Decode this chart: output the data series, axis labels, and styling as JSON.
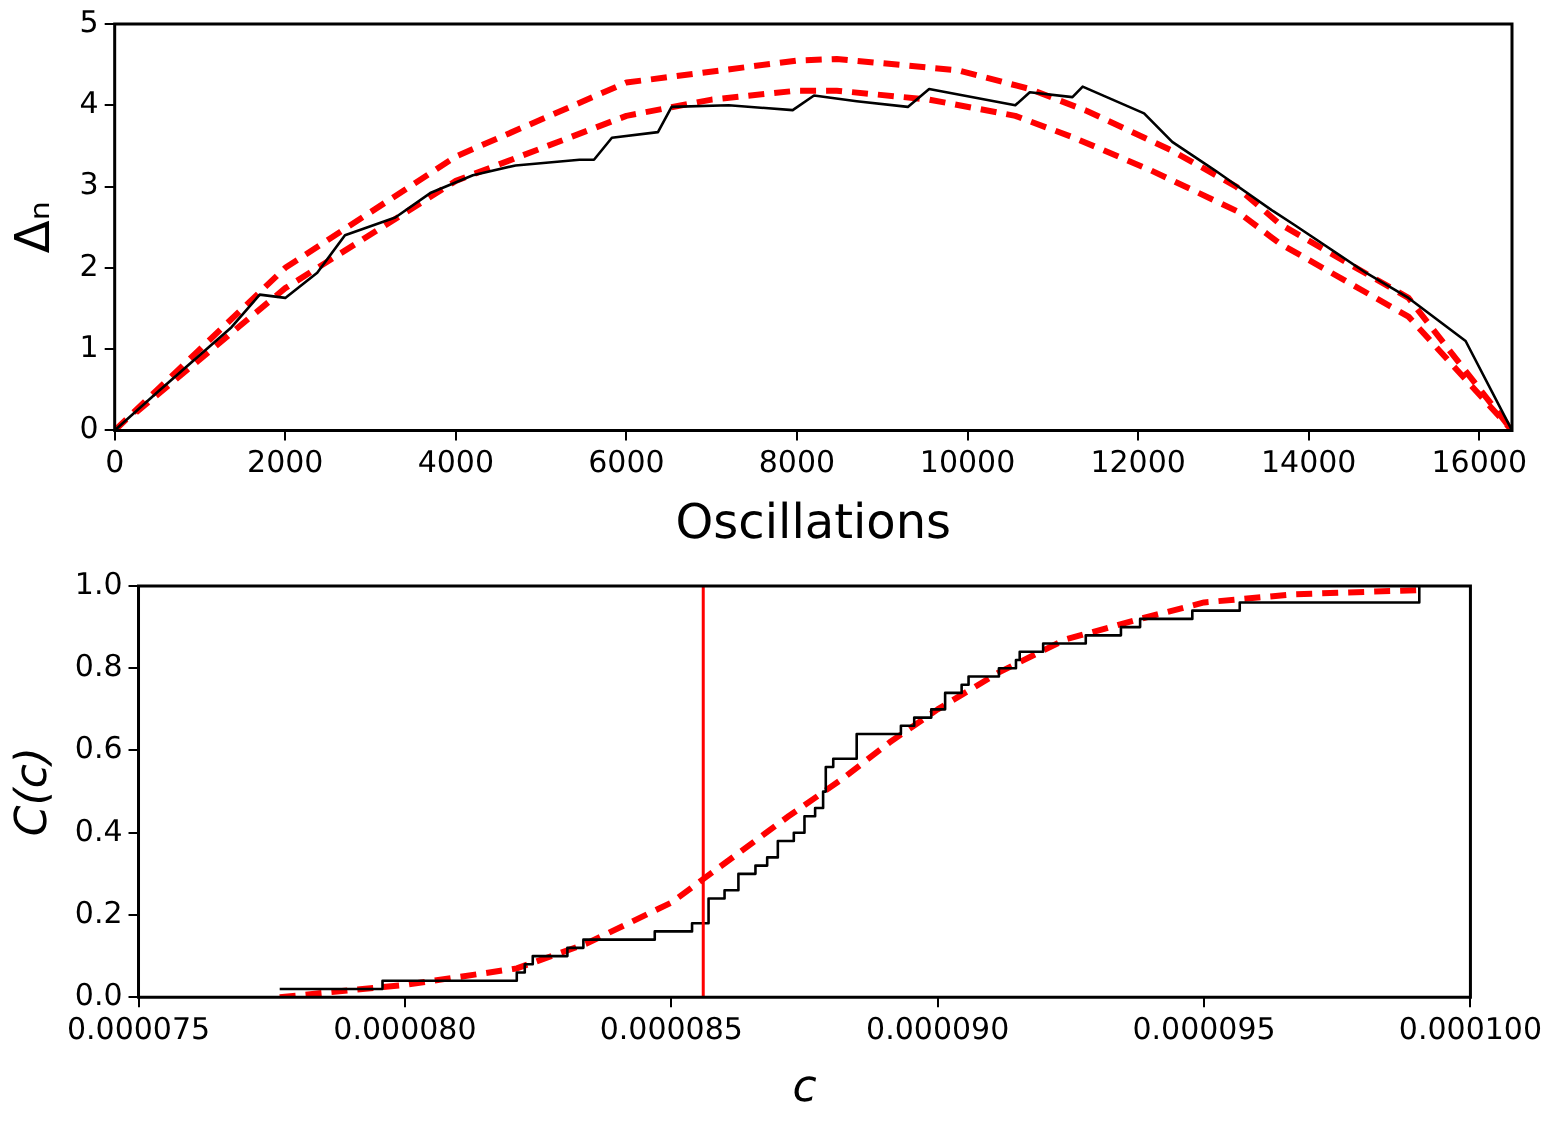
{
  "chart_data": [
    {
      "type": "line",
      "xlabel": "Oscillations",
      "ylabel": "Δₙ",
      "xlim": [
        0,
        16384
      ],
      "ylim": [
        0,
        5
      ],
      "xticks": [
        0,
        2000,
        4000,
        6000,
        8000,
        10000,
        12000,
        14000,
        16000
      ],
      "yticks": [
        0,
        1,
        2,
        3,
        4,
        5
      ],
      "grid": false,
      "series": [
        {
          "color": "#000000",
          "line_style": "solid",
          "x": [
            0,
            500,
            1370,
            1700,
            2000,
            2375,
            2700,
            3290,
            3700,
            4200,
            4700,
            5450,
            5620,
            5830,
            6370,
            6530,
            7200,
            7950,
            8200,
            8700,
            9300,
            9550,
            10560,
            10730,
            11230,
            11350,
            12070,
            12400,
            12900,
            13580,
            13830,
            14670,
            15170,
            15840,
            16384
          ],
          "values": [
            0,
            0.47,
            1.27,
            1.67,
            1.63,
            1.94,
            2.4,
            2.62,
            2.92,
            3.14,
            3.26,
            3.33,
            3.33,
            3.6,
            3.67,
            3.98,
            4.0,
            3.94,
            4.12,
            4.05,
            3.98,
            4.2,
            4.0,
            4.16,
            4.1,
            4.23,
            3.9,
            3.55,
            3.2,
            2.7,
            2.53,
            1.94,
            1.63,
            1.1,
            0
          ]
        },
        {
          "color": "#ff0000",
          "line_style": "dashed",
          "x": [
            0,
            2000,
            4000,
            6000,
            8000,
            8466,
            9890,
            10730,
            11400,
            12400,
            13150,
            13660,
            15170,
            16384
          ],
          "values": [
            0,
            2.0,
            3.37,
            4.28,
            4.55,
            4.57,
            4.43,
            4.2,
            3.93,
            3.44,
            3.0,
            2.54,
            1.63,
            0
          ]
        },
        {
          "color": "#ff0000",
          "line_style": "dashed",
          "x": [
            250,
            2000,
            4000,
            6000,
            7000,
            8000,
            8466,
            9550,
            10560,
            11250,
            12150,
            13155,
            13660,
            15170,
            16384
          ],
          "values": [
            0.22,
            1.75,
            3.07,
            3.87,
            4.07,
            4.18,
            4.18,
            4.07,
            3.87,
            3.6,
            3.2,
            2.7,
            2.3,
            1.4,
            0
          ]
        }
      ]
    },
    {
      "type": "step",
      "xlabel": "c",
      "ylabel": "C(c)",
      "xlim": [
        7.5e-05,
        0.0001
      ],
      "ylim": [
        0,
        1
      ],
      "xticks": [
        {
          "value": 7.5e-05,
          "label": "0.000075"
        },
        {
          "value": 8e-05,
          "label": "0.000080"
        },
        {
          "value": 8.5e-05,
          "label": "0.000085"
        },
        {
          "value": 9e-05,
          "label": "0.000090"
        },
        {
          "value": 9.5e-05,
          "label": "0.000095"
        },
        {
          "value": 0.0001,
          "label": "0.000100"
        }
      ],
      "yticks": [
        {
          "value": 0,
          "label": "0.0"
        },
        {
          "value": 0.2,
          "label": "0.2"
        },
        {
          "value": 0.4,
          "label": "0.4"
        },
        {
          "value": 0.6,
          "label": "0.6"
        },
        {
          "value": 0.8,
          "label": "0.8"
        },
        {
          "value": 1,
          "label": "1.0"
        }
      ],
      "grid": false,
      "ref_lines": [
        {
          "axis": "x",
          "value": 8.56e-05,
          "color": "#ff0000"
        }
      ],
      "series": [
        {
          "color": "#000000",
          "line_style": "solid",
          "x": [
            7.765e-05,
            7.958e-05,
            8.21e-05,
            8.225e-05,
            8.24e-05,
            8.305e-05,
            8.335e-05,
            8.469e-05,
            8.539e-05,
            8.57e-05,
            8.6e-05,
            8.626e-05,
            8.658e-05,
            8.68e-05,
            8.7e-05,
            8.73e-05,
            8.75e-05,
            8.77e-05,
            8.785e-05,
            8.79e-05,
            8.804e-05,
            8.848e-05,
            8.931e-05,
            8.956e-05,
            8.988e-05,
            9.014e-05,
            9.045e-05,
            9.058e-05,
            9.115e-05,
            9.147e-05,
            9.154e-05,
            9.198e-05,
            9.278e-05,
            9.344e-05,
            9.38e-05,
            9.478e-05,
            9.567e-05,
            9.904e-05
          ],
          "values": [
            0.02,
            0.04,
            0.06,
            0.08,
            0.1,
            0.12,
            0.14,
            0.16,
            0.18,
            0.24,
            0.26,
            0.3,
            0.32,
            0.34,
            0.38,
            0.4,
            0.44,
            0.46,
            0.5,
            0.56,
            0.58,
            0.64,
            0.66,
            0.68,
            0.7,
            0.74,
            0.76,
            0.78,
            0.8,
            0.82,
            0.84,
            0.86,
            0.88,
            0.9,
            0.92,
            0.94,
            0.96,
            1.0
          ]
        },
        {
          "type": "line",
          "color": "#ff0000",
          "line_style": "dashed",
          "x": [
            7.765e-05,
            8e-05,
            8.21e-05,
            8.34e-05,
            8.5e-05,
            8.72e-05,
            8.82e-05,
            8.91e-05,
            9e-05,
            9.115e-05,
            9.24e-05,
            9.38e-05,
            9.5e-05,
            9.67e-05,
            9.9e-05
          ],
          "values": [
            0.0,
            0.03,
            0.07,
            0.13,
            0.23,
            0.44,
            0.53,
            0.62,
            0.7,
            0.79,
            0.87,
            0.92,
            0.96,
            0.98,
            0.99
          ]
        }
      ]
    }
  ]
}
